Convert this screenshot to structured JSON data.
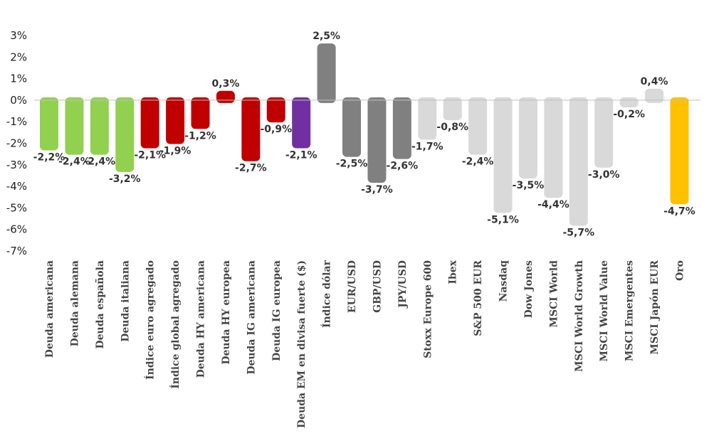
{
  "chart_data": {
    "type": "bar",
    "title": "",
    "xlabel": "",
    "ylabel": "",
    "ylim": [
      -7,
      3
    ],
    "yticks": [
      3,
      2,
      1,
      0,
      -1,
      -2,
      -3,
      -4,
      -5,
      -6,
      -7
    ],
    "ytick_labels": [
      "3%",
      "2%",
      "1%",
      "0%",
      "-1%",
      "-2%",
      "-3%",
      "-4%",
      "-5%",
      "-6%",
      "-7%"
    ],
    "grid": false,
    "legend": "none",
    "bars": [
      {
        "category": "Deuda americana",
        "value": -2.2,
        "label": "-2,2%",
        "color": "#92d050"
      },
      {
        "category": "Deuda alemana",
        "value": -2.4,
        "label": "-2,4%",
        "color": "#92d050"
      },
      {
        "category": "Deuda española",
        "value": -2.4,
        "label": "-2,4%",
        "color": "#92d050"
      },
      {
        "category": "Deuda italiana",
        "value": -3.2,
        "label": "-3,2%",
        "color": "#92d050"
      },
      {
        "category": "Índice euro agregado",
        "value": -2.1,
        "label": "-2,1%",
        "color": "#c00000"
      },
      {
        "category": "Índice global agregado",
        "value": -1.9,
        "label": "-1,9%",
        "color": "#c00000"
      },
      {
        "category": "Deuda HY americana",
        "value": -1.2,
        "label": "-1,2%",
        "color": "#c00000"
      },
      {
        "category": "Deuda HY europea",
        "value": 0.3,
        "label": "0,3%",
        "color": "#c00000"
      },
      {
        "category": "Deuda IG americana",
        "value": -2.7,
        "label": "-2,7%",
        "color": "#c00000"
      },
      {
        "category": "Deuda IG europea",
        "value": -0.9,
        "label": "-0,9%",
        "color": "#c00000"
      },
      {
        "category": "Deuda EM en divisa fuerte ($)",
        "value": -2.1,
        "label": "-2,1%",
        "color": "#7030a0"
      },
      {
        "category": "Índice dólar",
        "value": 2.5,
        "label": "2,5%",
        "color": "#808080"
      },
      {
        "category": "EUR/USD",
        "value": -2.5,
        "label": "-2,5%",
        "color": "#808080"
      },
      {
        "category": "GBP/USD",
        "value": -3.7,
        "label": "-3,7%",
        "color": "#808080"
      },
      {
        "category": "JPY/USD",
        "value": -2.6,
        "label": "-2,6%",
        "color": "#808080"
      },
      {
        "category": "Stoxx Europe 600",
        "value": -1.7,
        "label": "-1,7%",
        "color": "#d9d9d9"
      },
      {
        "category": "Ibex",
        "value": -0.8,
        "label": "-0,8%",
        "color": "#d9d9d9"
      },
      {
        "category": "S&P 500 EUR",
        "value": -2.4,
        "label": "-2,4%",
        "color": "#d9d9d9"
      },
      {
        "category": "Nasdaq",
        "value": -5.1,
        "label": "-5,1%",
        "color": "#d9d9d9"
      },
      {
        "category": "Dow Jones",
        "value": -3.5,
        "label": "-3,5%",
        "color": "#d9d9d9"
      },
      {
        "category": "MSCI World",
        "value": -4.4,
        "label": "-4,4%",
        "color": "#d9d9d9"
      },
      {
        "category": "MSCI World Growth",
        "value": -5.7,
        "label": "-5,7%",
        "color": "#d9d9d9"
      },
      {
        "category": "MSCI World Value",
        "value": -3.0,
        "label": "-3,0%",
        "color": "#d9d9d9"
      },
      {
        "category": "MSCI Emergentes",
        "value": -0.2,
        "label": "-0,2%",
        "color": "#d9d9d9"
      },
      {
        "category": "MSCI Japón EUR",
        "value": 0.4,
        "label": "0,4%",
        "color": "#d9d9d9"
      },
      {
        "category": "Oro",
        "value": -4.7,
        "label": "-4,7%",
        "color": "#ffc000"
      }
    ]
  }
}
